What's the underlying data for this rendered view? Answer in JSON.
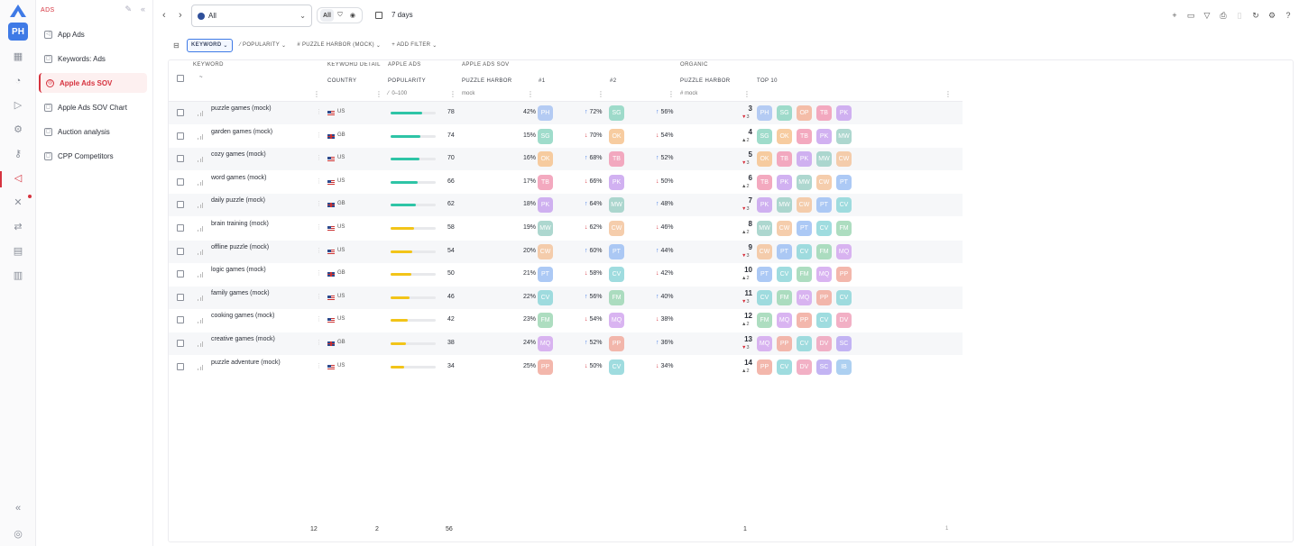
{
  "rail": {
    "avatar": "PH"
  },
  "sidebar": {
    "section": "ADS",
    "items": [
      {
        "label": "App Ads",
        "active": false
      },
      {
        "label": "Keywords: Ads",
        "active": false
      },
      {
        "label": "Apple Ads SOV",
        "active": true
      },
      {
        "label": "Apple Ads SOV Chart",
        "active": false
      },
      {
        "label": "Auction analysis",
        "active": false
      },
      {
        "label": "CPP Competitors",
        "active": false
      }
    ]
  },
  "topbar": {
    "location": "All",
    "segments": [
      "All"
    ],
    "date_range": "7 days"
  },
  "filters": [
    {
      "label": "KEYWORD",
      "active": true
    },
    {
      "label": "POPULARITY",
      "active": false
    },
    {
      "label": "PUZZLE HARBOR (MOCK)",
      "active": false
    },
    {
      "label": "+ ADD FILTER",
      "active": false
    }
  ],
  "table": {
    "headers": {
      "keyword": "KEYWORD",
      "keyword_sort": "~",
      "keyword_detail": "KEYWORD DETAIL",
      "country": "COUNTRY",
      "apple_ads": "APPLE ADS",
      "popularity": "POPULARITY",
      "popularity_filter": "0–100",
      "sov": "APPLE ADS SOV",
      "puzzle_harbor": "PUZZLE HARBOR",
      "mock": "mock",
      "first": "#1",
      "second": "#2",
      "organic": "ORGANIC",
      "organic_app": "PUZZLE HARBOR",
      "organic_filter": "mock",
      "top10": "TOP 10"
    },
    "colors": {
      "PH": "#a9c4f2",
      "SG": "#8fd6c2",
      "OP": "#f4b39a",
      "TB": "#f29bb5",
      "PK": "#c9a4ef",
      "OK": "#f6c490",
      "MW": "#9fd1c7",
      "CW": "#f4c59e",
      "PT": "#9ec0f4",
      "CV": "#8fd7da",
      "FM": "#9fd8b6",
      "MQ": "#d3a8ef",
      "PP": "#f2ab9e",
      "DV": "#f0a3bc",
      "SC": "#b9a8f2",
      "IB": "#9fc8ef"
    },
    "rows": [
      {
        "keyword": "puzzle games (mock)",
        "country": "US",
        "flag": "us",
        "popularity": 78,
        "pop_color": "#2ec4a6",
        "sov": "42%",
        "first": "PH",
        "t1_dir": "up",
        "t1": "72%",
        "second": "SG",
        "t2_dir": "up",
        "t2": "56%",
        "rank": "3",
        "rank_delta": "3",
        "delta_dir": "down",
        "top10": [
          "PH",
          "SG",
          "OP",
          "TB",
          "PK"
        ]
      },
      {
        "keyword": "garden games (mock)",
        "country": "GB",
        "flag": "gb",
        "popularity": 74,
        "pop_color": "#2ec4a6",
        "sov": "15%",
        "first": "SG",
        "t1_dir": "down",
        "t1": "70%",
        "second": "OK",
        "t2_dir": "down",
        "t2": "54%",
        "rank": "4",
        "rank_delta": "2",
        "delta_dir": "up",
        "top10": [
          "SG",
          "OK",
          "TB",
          "PK",
          "MW"
        ]
      },
      {
        "keyword": "cozy games (mock)",
        "country": "US",
        "flag": "us",
        "popularity": 70,
        "pop_color": "#2ec4a6",
        "sov": "16%",
        "first": "OK",
        "t1_dir": "up",
        "t1": "68%",
        "second": "TB",
        "t2_dir": "up",
        "t2": "52%",
        "rank": "5",
        "rank_delta": "3",
        "delta_dir": "down",
        "top10": [
          "OK",
          "TB",
          "PK",
          "MW",
          "CW"
        ]
      },
      {
        "keyword": "word games (mock)",
        "country": "US",
        "flag": "us",
        "popularity": 66,
        "pop_color": "#2ec4a6",
        "sov": "17%",
        "first": "TB",
        "t1_dir": "down",
        "t1": "66%",
        "second": "PK",
        "t2_dir": "down",
        "t2": "50%",
        "rank": "6",
        "rank_delta": "2",
        "delta_dir": "up",
        "top10": [
          "TB",
          "PK",
          "MW",
          "CW",
          "PT"
        ]
      },
      {
        "keyword": "daily puzzle (mock)",
        "country": "GB",
        "flag": "gb",
        "popularity": 62,
        "pop_color": "#2ec4a6",
        "sov": "18%",
        "first": "PK",
        "t1_dir": "up",
        "t1": "64%",
        "second": "MW",
        "t2_dir": "up",
        "t2": "48%",
        "rank": "7",
        "rank_delta": "3",
        "delta_dir": "down",
        "top10": [
          "PK",
          "MW",
          "CW",
          "PT",
          "CV"
        ]
      },
      {
        "keyword": "brain training (mock)",
        "country": "US",
        "flag": "us",
        "popularity": 58,
        "pop_color": "#f2c418",
        "sov": "19%",
        "first": "MW",
        "t1_dir": "down",
        "t1": "62%",
        "second": "CW",
        "t2_dir": "down",
        "t2": "46%",
        "rank": "8",
        "rank_delta": "2",
        "delta_dir": "up",
        "top10": [
          "MW",
          "CW",
          "PT",
          "CV",
          "FM"
        ]
      },
      {
        "keyword": "offline puzzle (mock)",
        "country": "US",
        "flag": "us",
        "popularity": 54,
        "pop_color": "#f2c418",
        "sov": "20%",
        "first": "CW",
        "t1_dir": "up",
        "t1": "60%",
        "second": "PT",
        "t2_dir": "up",
        "t2": "44%",
        "rank": "9",
        "rank_delta": "3",
        "delta_dir": "down",
        "top10": [
          "CW",
          "PT",
          "CV",
          "FM",
          "MQ"
        ]
      },
      {
        "keyword": "logic games (mock)",
        "country": "GB",
        "flag": "gb",
        "popularity": 50,
        "pop_color": "#f2c418",
        "sov": "21%",
        "first": "PT",
        "t1_dir": "down",
        "t1": "58%",
        "second": "CV",
        "t2_dir": "down",
        "t2": "42%",
        "rank": "10",
        "rank_delta": "2",
        "delta_dir": "up",
        "top10": [
          "PT",
          "CV",
          "FM",
          "MQ",
          "PP"
        ]
      },
      {
        "keyword": "family games (mock)",
        "country": "US",
        "flag": "us",
        "popularity": 46,
        "pop_color": "#f2c418",
        "sov": "22%",
        "first": "CV",
        "t1_dir": "up",
        "t1": "56%",
        "second": "FM",
        "t2_dir": "up",
        "t2": "40%",
        "rank": "11",
        "rank_delta": "3",
        "delta_dir": "down",
        "top10": [
          "CV",
          "FM",
          "MQ",
          "PP",
          "CV"
        ]
      },
      {
        "keyword": "cooking games (mock)",
        "country": "US",
        "flag": "us",
        "popularity": 42,
        "pop_color": "#f2c418",
        "sov": "23%",
        "first": "FM",
        "t1_dir": "down",
        "t1": "54%",
        "second": "MQ",
        "t2_dir": "down",
        "t2": "38%",
        "rank": "12",
        "rank_delta": "2",
        "delta_dir": "up",
        "top10": [
          "FM",
          "MQ",
          "PP",
          "CV",
          "DV"
        ]
      },
      {
        "keyword": "creative games (mock)",
        "country": "GB",
        "flag": "gb",
        "popularity": 38,
        "pop_color": "#f2c418",
        "sov": "24%",
        "first": "MQ",
        "t1_dir": "up",
        "t1": "52%",
        "second": "PP",
        "t2_dir": "up",
        "t2": "36%",
        "rank": "13",
        "rank_delta": "3",
        "delta_dir": "down",
        "top10": [
          "MQ",
          "PP",
          "CV",
          "DV",
          "SC"
        ]
      },
      {
        "keyword": "puzzle adventure (mock)",
        "country": "US",
        "flag": "us",
        "popularity": 34,
        "pop_color": "#f2c418",
        "sov": "25%",
        "first": "PP",
        "t1_dir": "down",
        "t1": "50%",
        "second": "CV",
        "t2_dir": "down",
        "t2": "34%",
        "rank": "14",
        "rank_delta": "2",
        "delta_dir": "up",
        "top10": [
          "PP",
          "CV",
          "DV",
          "SC",
          "IB"
        ]
      }
    ]
  },
  "footer": {
    "keywords_count": "12",
    "countries_count": "2",
    "popularity_avg": "56",
    "organic_best": "1",
    "top10_count": "1"
  }
}
